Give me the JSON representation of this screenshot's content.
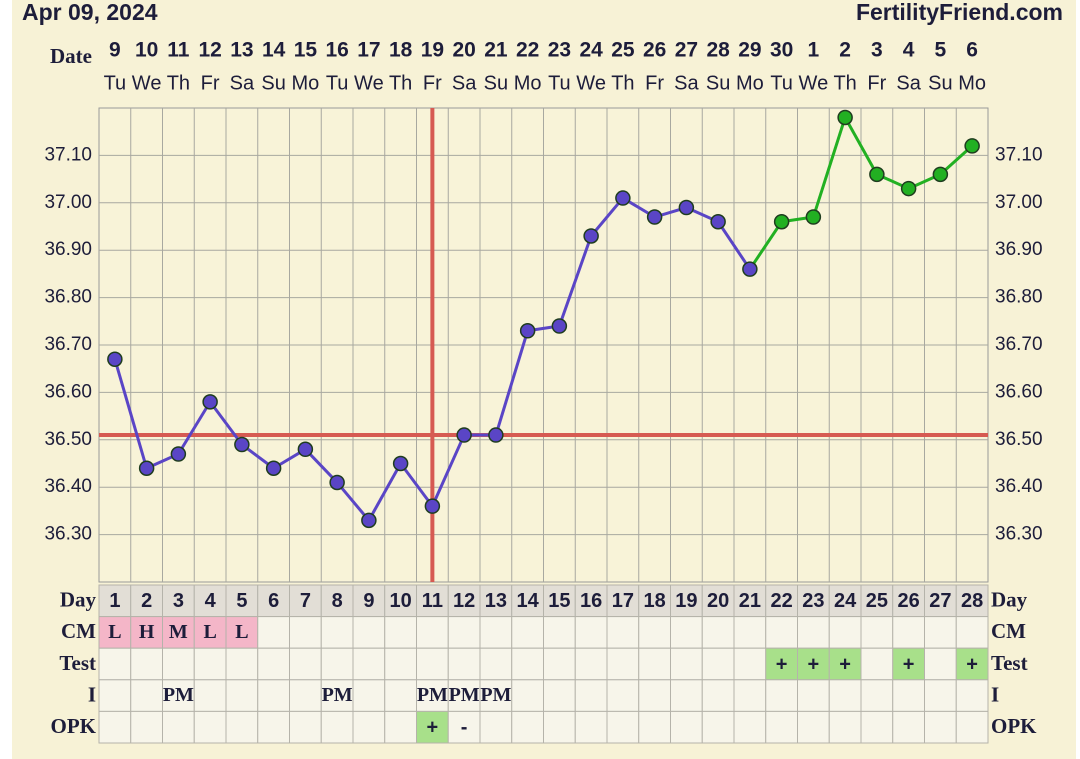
{
  "header": {
    "date": "Apr 09, 2024",
    "site": "FertilityFriend.com"
  },
  "chart_data": {
    "type": "line",
    "x_label": "Date",
    "categories": [
      "9",
      "10",
      "11",
      "12",
      "13",
      "14",
      "15",
      "16",
      "17",
      "18",
      "19",
      "20",
      "21",
      "22",
      "23",
      "24",
      "25",
      "26",
      "27",
      "28",
      "29",
      "30",
      "1",
      "2",
      "3",
      "4",
      "5",
      "6"
    ],
    "weekdays": [
      "Tu",
      "We",
      "Th",
      "Fr",
      "Sa",
      "Su",
      "Mo",
      "Tu",
      "We",
      "Th",
      "Fr",
      "Sa",
      "Su",
      "Mo",
      "Tu",
      "We",
      "Th",
      "Fr",
      "Sa",
      "Su",
      "Mo",
      "Tu",
      "We",
      "Th",
      "Fr",
      "Sa",
      "Su",
      "Mo"
    ],
    "values": [
      36.67,
      36.44,
      36.47,
      36.58,
      36.49,
      36.44,
      36.48,
      36.41,
      36.33,
      36.45,
      36.36,
      36.51,
      36.51,
      36.73,
      36.74,
      36.93,
      37.01,
      36.97,
      36.99,
      36.96,
      36.86,
      36.96,
      36.97,
      37.18,
      37.06,
      37.03,
      37.06,
      37.12
    ],
    "point_colors": [
      "#5a45c6",
      "#5a45c6",
      "#5a45c6",
      "#5a45c6",
      "#5a45c6",
      "#5a45c6",
      "#5a45c6",
      "#5a45c6",
      "#5a45c6",
      "#5a45c6",
      "#5a45c6",
      "#5a45c6",
      "#5a45c6",
      "#5a45c6",
      "#5a45c6",
      "#5a45c6",
      "#5a45c6",
      "#5a45c6",
      "#5a45c6",
      "#5a45c6",
      "#5a45c6",
      "#22b022",
      "#22b022",
      "#22b022",
      "#22b022",
      "#22b022",
      "#22b022",
      "#22b022"
    ],
    "ylim": [
      36.2,
      37.2
    ],
    "yticks": [
      {
        "value": 36.3,
        "label": "36.30"
      },
      {
        "value": 36.4,
        "label": "36.40"
      },
      {
        "value": 36.5,
        "label": "36.50"
      },
      {
        "value": 36.6,
        "label": "36.60"
      },
      {
        "value": 36.7,
        "label": "36.70"
      },
      {
        "value": 36.8,
        "label": "36.80"
      },
      {
        "value": 36.9,
        "label": "36.90"
      },
      {
        "value": 37.0,
        "label": "37.00"
      },
      {
        "value": 37.1,
        "label": "37.10"
      }
    ],
    "coverline": 36.51,
    "ovulation_day": 11,
    "marker_color": "#d65a52",
    "grid": true
  },
  "table": {
    "row_labels": [
      "Day",
      "CM",
      "Test",
      "I",
      "OPK"
    ],
    "days": [
      1,
      2,
      3,
      4,
      5,
      6,
      7,
      8,
      9,
      10,
      11,
      12,
      13,
      14,
      15,
      16,
      17,
      18,
      19,
      20,
      21,
      22,
      23,
      24,
      25,
      26,
      27,
      28
    ],
    "cm": [
      "L",
      "H",
      "M",
      "L",
      "L",
      null,
      null,
      null,
      null,
      null,
      null,
      null,
      null,
      null,
      null,
      null,
      null,
      null,
      null,
      null,
      null,
      null,
      null,
      null,
      null,
      null,
      null,
      null
    ],
    "test": [
      null,
      null,
      null,
      null,
      null,
      null,
      null,
      null,
      null,
      null,
      null,
      null,
      null,
      null,
      null,
      null,
      null,
      null,
      null,
      null,
      null,
      "+",
      "+",
      "+",
      null,
      "+",
      null,
      "+"
    ],
    "intercourse": [
      null,
      null,
      "PM",
      null,
      null,
      null,
      null,
      "PM",
      null,
      null,
      "PM",
      "PM",
      "PM",
      null,
      null,
      null,
      null,
      null,
      null,
      null,
      null,
      null,
      null,
      null,
      null,
      null,
      null,
      null
    ],
    "opk": [
      null,
      null,
      null,
      null,
      null,
      null,
      null,
      null,
      null,
      null,
      "+",
      "-",
      null,
      null,
      null,
      null,
      null,
      null,
      null,
      null,
      null,
      null,
      null,
      null,
      null,
      null,
      null,
      null
    ],
    "cm_color": "#f4b6c8",
    "positive_color": "#a8e08a"
  }
}
